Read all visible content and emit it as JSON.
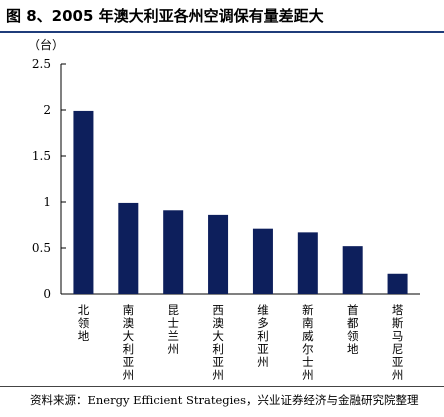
{
  "page": {
    "title": "图 8、2005 年澳大利亚各州空调保有量差距大",
    "source_label": "资料来源：",
    "source_text": "Energy Efficient Strategies，兴业证券经济与金融研究院整理"
  },
  "chart_data": {
    "type": "bar",
    "ylabel": "（台）",
    "ylim": [
      0,
      2.5
    ],
    "yticks": [
      0,
      0.5,
      1,
      1.5,
      2,
      2.5
    ],
    "ytick_labels": [
      "0",
      "0.5",
      "1",
      "1.5",
      "2",
      "2.5"
    ],
    "categories": [
      "北领地",
      "南澳大利亚州",
      "昆士兰州",
      "西澳大利亚州",
      "维多利亚州",
      "新南威尔士州",
      "首都领地",
      "塔斯马尼亚州"
    ],
    "values": [
      1.99,
      0.99,
      0.91,
      0.86,
      0.71,
      0.67,
      0.52,
      0.22
    ],
    "bar_color": "#0d1f5c",
    "grid": false,
    "legend": "none"
  }
}
